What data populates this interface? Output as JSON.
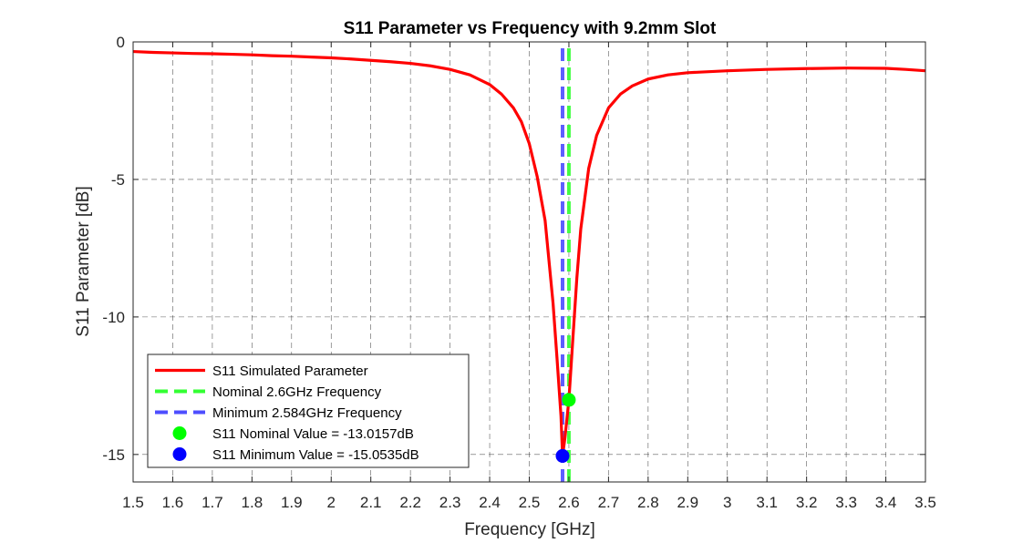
{
  "chart_data": {
    "type": "line",
    "title": "S11 Parameter vs Frequency with 9.2mm Slot",
    "xlabel": "Frequency [GHz]",
    "ylabel": "S11 Parameter [dB]",
    "xlim": [
      1.5,
      3.5
    ],
    "ylim": [
      -16,
      0
    ],
    "xticks": [
      1.5,
      1.6,
      1.7,
      1.8,
      1.9,
      2,
      2.1,
      2.2,
      2.3,
      2.4,
      2.5,
      2.6,
      2.7,
      2.8,
      2.9,
      3,
      3.1,
      3.2,
      3.3,
      3.4,
      3.5
    ],
    "xtick_labels": [
      "1.5",
      "1.6",
      "1.7",
      "1.8",
      "1.9",
      "2",
      "2.1",
      "2.2",
      "2.3",
      "2.4",
      "2.5",
      "2.6",
      "2.7",
      "2.8",
      "2.9",
      "3",
      "3.1",
      "3.2",
      "3.3",
      "3.4",
      "3.5"
    ],
    "yticks": [
      0,
      -5,
      -10,
      -15
    ],
    "ytick_labels": [
      "0",
      "-5",
      "-10",
      "-15"
    ],
    "grid": true,
    "grid_style": "dashed",
    "legend_position": "bottom-left",
    "series": [
      {
        "name": "S11 Simulated Parameter",
        "style": "solid-line",
        "color": "#ff0000",
        "x": [
          1.5,
          1.55,
          1.6,
          1.65,
          1.7,
          1.75,
          1.8,
          1.85,
          1.9,
          1.95,
          2.0,
          2.05,
          2.1,
          2.15,
          2.2,
          2.25,
          2.3,
          2.35,
          2.4,
          2.43,
          2.46,
          2.48,
          2.5,
          2.52,
          2.54,
          2.56,
          2.57,
          2.58,
          2.584,
          2.59,
          2.6,
          2.61,
          2.62,
          2.63,
          2.65,
          2.67,
          2.7,
          2.73,
          2.76,
          2.8,
          2.85,
          2.9,
          3.0,
          3.1,
          3.2,
          3.3,
          3.4,
          3.45,
          3.5
        ],
        "y": [
          -0.35,
          -0.38,
          -0.4,
          -0.42,
          -0.43,
          -0.45,
          -0.47,
          -0.5,
          -0.52,
          -0.55,
          -0.58,
          -0.62,
          -0.67,
          -0.72,
          -0.78,
          -0.87,
          -1.0,
          -1.2,
          -1.55,
          -1.9,
          -2.4,
          -2.9,
          -3.7,
          -4.9,
          -6.5,
          -9.5,
          -11.5,
          -13.6,
          -15.05,
          -14.4,
          -13.02,
          -10.8,
          -8.6,
          -6.8,
          -4.6,
          -3.4,
          -2.4,
          -1.9,
          -1.6,
          -1.35,
          -1.2,
          -1.12,
          -1.05,
          -1.0,
          -0.97,
          -0.95,
          -0.96,
          -1.0,
          -1.05
        ]
      },
      {
        "name": "Nominal 2.6GHz Frequency",
        "style": "dashed-vertical-line",
        "color": "#33ff33",
        "x": [
          2.6,
          2.6
        ],
        "y": [
          -16,
          0
        ]
      },
      {
        "name": "Minimum 2.584GHz Frequency",
        "style": "dashed-vertical-line",
        "color": "#4d4dff",
        "x": [
          2.584,
          2.584
        ],
        "y": [
          -16,
          0
        ]
      },
      {
        "name": "S11 Nominal Value = -13.0157dB",
        "style": "marker",
        "color": "#00ff00",
        "x": [
          2.6
        ],
        "y": [
          -13.0157
        ]
      },
      {
        "name": "S11 Minimum Value = -15.0535dB",
        "style": "marker",
        "color": "#0000ff",
        "x": [
          2.584
        ],
        "y": [
          -15.0535
        ]
      }
    ]
  }
}
